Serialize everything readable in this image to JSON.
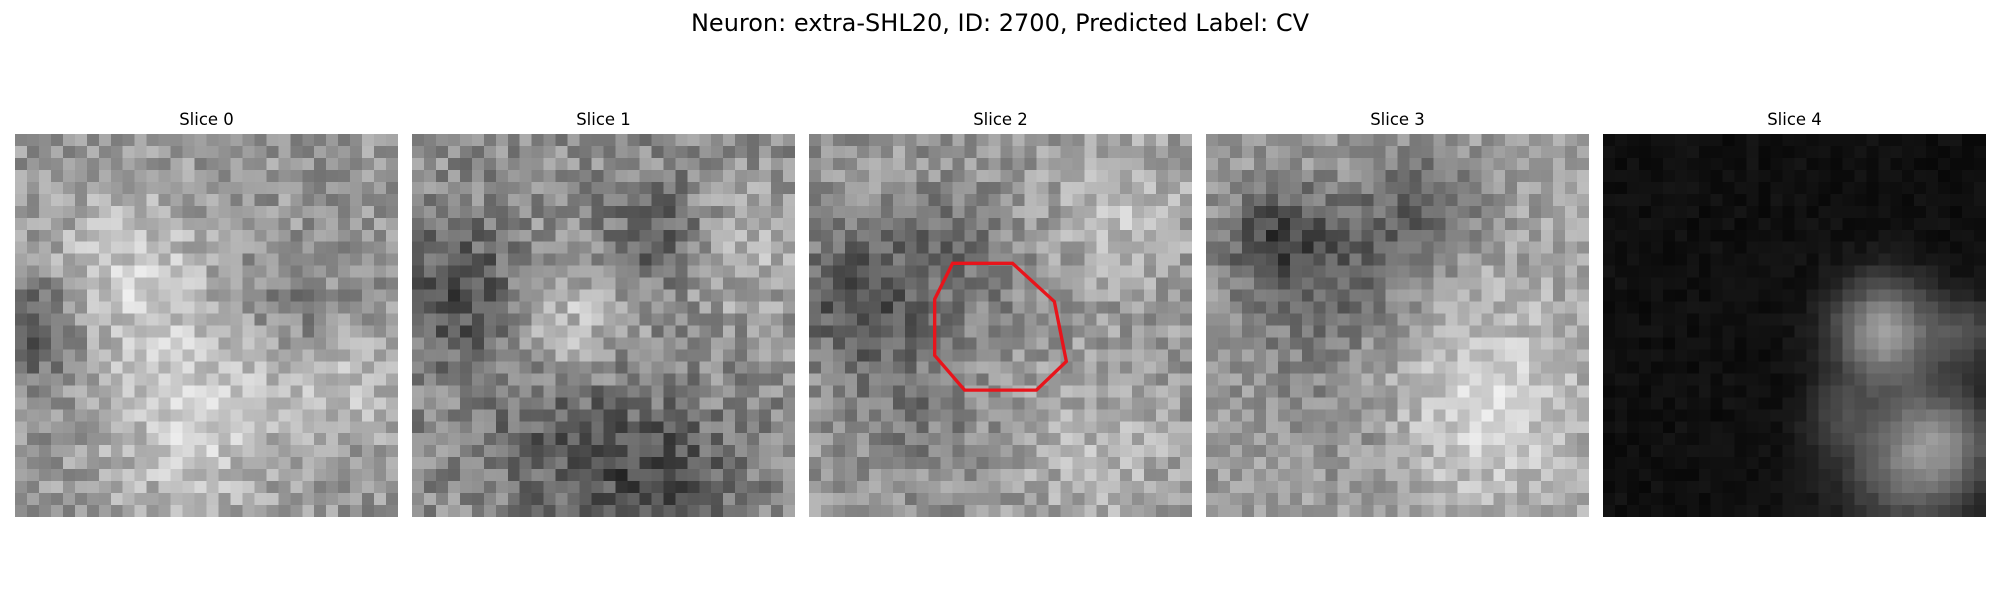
{
  "figure": {
    "title": "Neuron: extra-SHL20, ID: 2700, Predicted Label: CV"
  },
  "panels": [
    {
      "title": "Slice 0",
      "seed": 11,
      "base": 150,
      "contrast": 1.0
    },
    {
      "title": "Slice 1",
      "seed": 23,
      "base": 140,
      "contrast": 1.1
    },
    {
      "title": "Slice 2",
      "seed": 37,
      "base": 150,
      "contrast": 1.0,
      "outline_color": "#e8141b"
    },
    {
      "title": "Slice 3",
      "seed": 53,
      "base": 160,
      "contrast": 0.9
    },
    {
      "title": "Slice 4",
      "seed": 71,
      "base": 20,
      "contrast": 1.0
    }
  ],
  "colors": {
    "outline": "#e8141b"
  }
}
